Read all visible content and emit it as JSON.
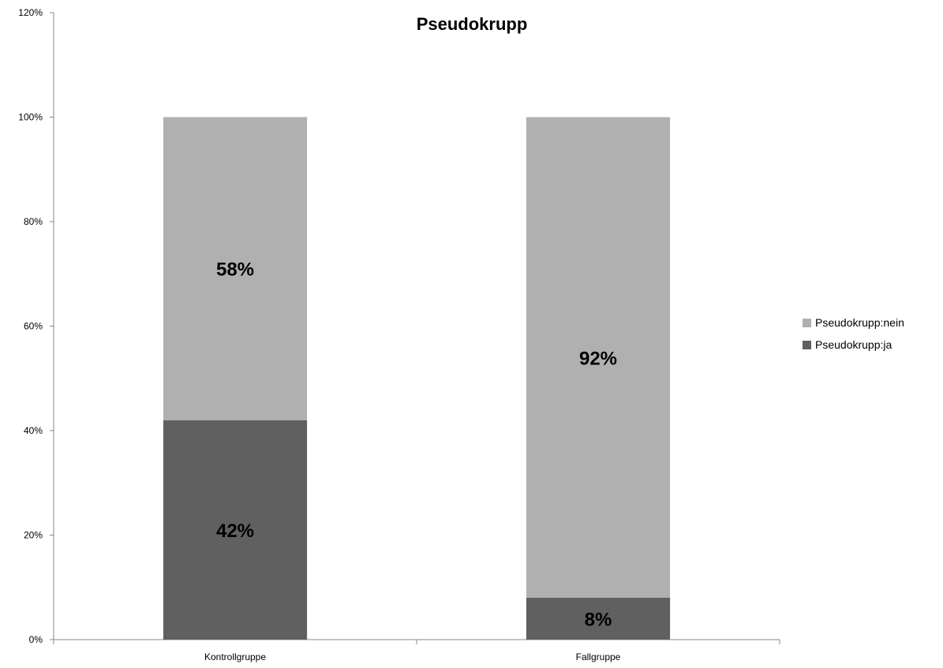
{
  "chart_data": {
    "type": "bar",
    "stacked": true,
    "title": "Pseudokrupp",
    "xlabel": "",
    "ylabel": "",
    "ylim": [
      0,
      120
    ],
    "yticks": [
      "0%",
      "20%",
      "40%",
      "60%",
      "80%",
      "100%",
      "120%"
    ],
    "categories": [
      "Kontrollgruppe",
      "Fallgruppe"
    ],
    "series": [
      {
        "name": "Pseudokrupp:ja",
        "values": [
          42,
          8
        ],
        "labels": [
          "42%",
          "8%"
        ],
        "color": "#606060"
      },
      {
        "name": "Pseudokrupp:nein",
        "values": [
          58,
          92
        ],
        "labels": [
          "58%",
          "92%"
        ],
        "color": "#b0b0b0"
      }
    ],
    "legend_order": [
      "Pseudokrupp:nein",
      "Pseudokrupp:ja"
    ],
    "legend_position": "right",
    "grid": false
  }
}
